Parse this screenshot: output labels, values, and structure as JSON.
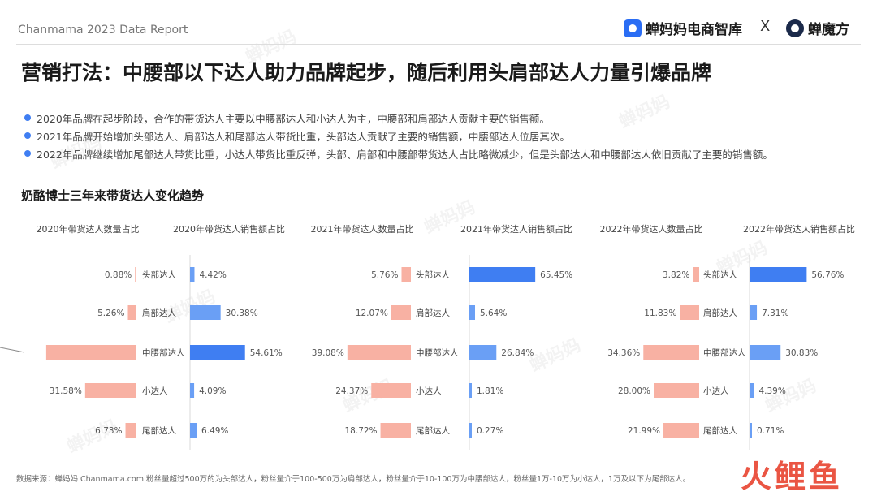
{
  "header": {
    "report_label": "Chanmama 2023 Data Report",
    "brand_left": "蝉妈妈电商智库",
    "brand_sep": "X",
    "brand_right": "蝉魔方"
  },
  "page_title": "营销打法：中腰部以下达人助力品牌起步，随后利用头肩部达人力量引爆品牌",
  "bullets": [
    "2020年品牌在起步阶段，合作的带货达人主要以中腰部达人和小达人为主，中腰部和肩部达人贡献主要的销售额。",
    "2021年品牌开始增加头部达人、肩部达人和尾部达人带货比重，头部达人贡献了主要的销售额，中腰部达人位居其次。",
    "2022年品牌继续增加尾部达人带货比重，小达人带货比重反弹，头部、肩部和中腰部带货达人占比略微减少，但是头部达人和中腰部达人依旧贡献了主要的销售额。"
  ],
  "section_title": "奶酪博士三年来带货达人变化趋势",
  "watermark": "蝉妈妈",
  "source_note": "数据来源：蝉妈妈 Chanmama.com   粉丝量超过500万的为头部达人，粉丝量介于100-500万为肩部达人，粉丝量介于10-100万为中腰部达人，粉丝量1万-10万为小达人，1万及以下为尾部达人。",
  "footer_logo": "火鲤鱼",
  "colors": {
    "count_bar": "#f8b1a3",
    "sales_bar": "#6a9ff5",
    "sales_bar_max": "#3f7ef2",
    "bullet_dot": "#3f7ef2"
  },
  "chart_data": [
    {
      "type": "bar",
      "year": "2020",
      "categories": [
        "头部达人",
        "肩部达人",
        "中腰部达人",
        "小达人",
        "尾部达人"
      ],
      "series": [
        {
          "name": "2020年带货达人数量占比",
          "values": [
            0.88,
            5.26,
            55.55,
            31.58,
            6.73
          ],
          "labels": [
            "0.88%",
            "5.26%",
            "",
            "31.58%",
            "6.73%"
          ]
        },
        {
          "name": "2020年带货达人销售额占比",
          "values": [
            4.42,
            30.38,
            54.61,
            4.09,
            6.49
          ],
          "labels": [
            "4.42%",
            "30.38%",
            "54.61%",
            "4.09%",
            "6.49%"
          ]
        }
      ]
    },
    {
      "type": "bar",
      "year": "2021",
      "categories": [
        "头部达人",
        "肩部达人",
        "中腰部达人",
        "小达人",
        "尾部达人"
      ],
      "series": [
        {
          "name": "2021年带货达人数量占比",
          "values": [
            5.76,
            12.07,
            39.08,
            24.37,
            18.72
          ],
          "labels": [
            "5.76%",
            "12.07%",
            "39.08%",
            "24.37%",
            "18.72%"
          ]
        },
        {
          "name": "2021年带货达人销售额占比",
          "values": [
            65.45,
            5.64,
            26.84,
            1.81,
            0.27
          ],
          "labels": [
            "65.45%",
            "5.64%",
            "26.84%",
            "1.81%",
            "0.27%"
          ]
        }
      ]
    },
    {
      "type": "bar",
      "year": "2022",
      "categories": [
        "头部达人",
        "肩部达人",
        "中腰部达人",
        "小达人",
        "尾部达人"
      ],
      "series": [
        {
          "name": "2022年带货达人数量占比",
          "values": [
            3.82,
            11.83,
            34.36,
            28.0,
            21.99
          ],
          "labels": [
            "3.82%",
            "11.83%",
            "34.36%",
            "28.00%",
            "21.99%"
          ]
        },
        {
          "name": "2022年带货达人销售额占比",
          "values": [
            56.76,
            7.31,
            30.83,
            4.39,
            0.71
          ],
          "labels": [
            "56.76%",
            "7.31%",
            "30.83%",
            "4.39%",
            "0.71%"
          ]
        }
      ]
    }
  ]
}
